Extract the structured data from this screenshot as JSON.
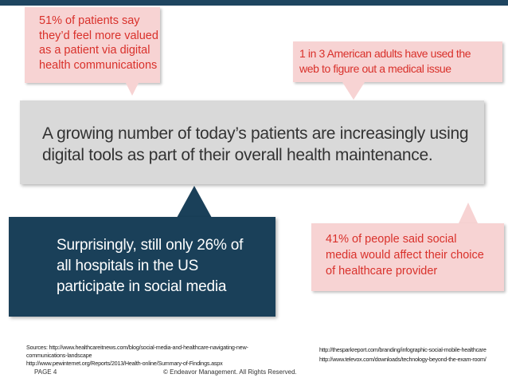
{
  "slide": {
    "callout_top_left": {
      "lines": [
        "51% of patients say",
        "they’d feel more valued",
        "as a patient via digital",
        "health communications"
      ]
    },
    "callout_top_right": {
      "lines": [
        "1 in 3 American adults have used the",
        "web to figure out a medical issue"
      ]
    },
    "main_statement": {
      "lines": [
        "A growing number of today’s patients are increasingly using",
        "digital tools as part of their overall health maintenance."
      ]
    },
    "navy_box": {
      "lines": [
        "Surprisingly, still only 26% of",
        "all hospitals in the US",
        "participate in social media"
      ]
    },
    "callout_bottom_right": {
      "lines": [
        "41% of people said social",
        "media would affect their choice",
        "of healthcare provider"
      ]
    },
    "sources": {
      "lines": [
        "Sources: http://www.healthcareitnews.com/blog/social-media-and-healthcare-navigating-new-",
        "communications-landscape",
        "http://www.pewinternet.org/Reports/2013/Health-online/Summary-of-Findings.aspx"
      ]
    },
    "links_right": [
      "http://thesparkreport.com/branding/infographic-social-mobile-healthcare",
      "http://www.televox.com/downloads/technology-beyond-the-exam-room/"
    ],
    "footer": {
      "page": "PAGE 4",
      "copyright": "© Endeavor Management. All Rights Reserved."
    },
    "colors": {
      "navy": "#1a4059",
      "pink_fill": "#f7d3d3",
      "pink_text": "#d9312b",
      "gray_fill": "#d9d9d9"
    }
  }
}
